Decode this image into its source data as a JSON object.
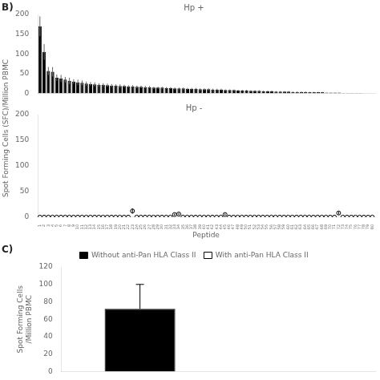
{
  "chart_data": [
    {
      "type": "bar",
      "annotations": [
        "B)"
      ],
      "title": "Hp +",
      "ylabel": "Spot Forming Cells (SFC)/Million PBMC",
      "categories": [
        "1",
        "2",
        "3",
        "4",
        "5",
        "6",
        "7",
        "8",
        "9",
        "10",
        "11",
        "12",
        "13",
        "14",
        "15",
        "16",
        "17",
        "18",
        "19",
        "20",
        "21",
        "22",
        "23",
        "24",
        "25",
        "26",
        "27",
        "28",
        "29",
        "30",
        "31",
        "32",
        "33",
        "34",
        "35",
        "36",
        "37",
        "38",
        "39",
        "40",
        "41",
        "42",
        "43",
        "44",
        "45",
        "46",
        "47",
        "48",
        "49",
        "50",
        "51",
        "52",
        "53",
        "54",
        "55",
        "56",
        "57",
        "58",
        "59",
        "60",
        "61",
        "62",
        "63",
        "64",
        "65",
        "66",
        "67",
        "68",
        "69",
        "70",
        "71",
        "72",
        "73",
        "74",
        "75",
        "76",
        "77",
        "78",
        "79",
        "80"
      ],
      "values": [
        170,
        105,
        57,
        55,
        40,
        38,
        35,
        32,
        30,
        28,
        27,
        25,
        24,
        23,
        22,
        22,
        21,
        20,
        20,
        19,
        19,
        18,
        18,
        17,
        17,
        16,
        16,
        15,
        15,
        15,
        14,
        14,
        13,
        13,
        13,
        12,
        12,
        12,
        11,
        11,
        11,
        10,
        10,
        10,
        9,
        9,
        9,
        8,
        8,
        8,
        7,
        7,
        7,
        6,
        6,
        6,
        5,
        5,
        5,
        5,
        4,
        4,
        4,
        4,
        3,
        3,
        3,
        3,
        2,
        2,
        2,
        2,
        1,
        1,
        1,
        1,
        1,
        0,
        0,
        0
      ],
      "errors": [
        25,
        20,
        10,
        12,
        8,
        9,
        7,
        8,
        6,
        7,
        6,
        5,
        5,
        5,
        4,
        4,
        4,
        4,
        3,
        4,
        3,
        3,
        3,
        3,
        3,
        3,
        3,
        2,
        2,
        2,
        2,
        2,
        2,
        2,
        2,
        2,
        2,
        2,
        2,
        2,
        2,
        2,
        2,
        2,
        1,
        1,
        1,
        1,
        1,
        1,
        1,
        1,
        1,
        1,
        1,
        1,
        1,
        1,
        1,
        1,
        1,
        1,
        1,
        1,
        1,
        1,
        1,
        1,
        0,
        0,
        0,
        0,
        0,
        0,
        0,
        0,
        0,
        0,
        0,
        0
      ],
      "color": "#000000",
      "ylim": [
        0,
        200
      ],
      "yticks": [
        0,
        50,
        100,
        150,
        200
      ],
      "grid": false,
      "tick_labels": "y"
    },
    {
      "type": "line",
      "title": "Hp -",
      "xlabel": "Peptide",
      "categories": [
        "1",
        "2",
        "3",
        "4",
        "5",
        "6",
        "7",
        "8",
        "9",
        "10",
        "11",
        "12",
        "13",
        "14",
        "15",
        "16",
        "17",
        "18",
        "19",
        "20",
        "21",
        "22",
        "23",
        "24",
        "25",
        "26",
        "27",
        "28",
        "29",
        "30",
        "31",
        "32",
        "33",
        "34",
        "35",
        "36",
        "37",
        "38",
        "39",
        "40",
        "41",
        "42",
        "43",
        "44",
        "45",
        "46",
        "47",
        "48",
        "49",
        "50",
        "51",
        "52",
        "53",
        "54",
        "55",
        "56",
        "57",
        "58",
        "59",
        "60",
        "61",
        "62",
        "63",
        "64",
        "65",
        "66",
        "67",
        "68",
        "69",
        "70",
        "71",
        "72",
        "73",
        "74",
        "75",
        "76",
        "77",
        "78",
        "79",
        "80"
      ],
      "values": [
        0,
        0,
        0,
        0,
        0,
        0,
        0,
        0,
        0,
        0,
        0,
        0,
        0,
        0,
        0,
        0,
        0,
        0,
        0,
        0,
        0,
        0,
        12,
        0,
        0,
        0,
        0,
        0,
        0,
        0,
        0,
        0,
        5,
        6,
        0,
        0,
        0,
        0,
        0,
        0,
        0,
        0,
        0,
        0,
        5,
        0,
        0,
        0,
        0,
        0,
        0,
        0,
        0,
        0,
        0,
        0,
        0,
        0,
        0,
        0,
        0,
        0,
        0,
        0,
        0,
        0,
        0,
        0,
        0,
        0,
        0,
        8,
        0,
        0,
        0,
        0,
        0,
        0,
        0,
        0
      ],
      "errors": [
        0,
        0,
        0,
        0,
        0,
        0,
        0,
        0,
        0,
        0,
        0,
        0,
        0,
        0,
        0,
        0,
        0,
        0,
        0,
        0,
        0,
        0,
        5,
        0,
        0,
        0,
        0,
        0,
        0,
        0,
        0,
        0,
        2,
        2,
        0,
        0,
        0,
        0,
        0,
        0,
        0,
        0,
        0,
        0,
        2,
        0,
        0,
        0,
        0,
        0,
        0,
        0,
        0,
        0,
        0,
        0,
        0,
        0,
        0,
        0,
        0,
        0,
        0,
        0,
        0,
        0,
        0,
        0,
        0,
        0,
        0,
        3,
        0,
        0,
        0,
        0,
        0,
        0,
        0,
        0
      ],
      "color": "#000000",
      "marker": "circle",
      "line_style": "none",
      "ylim": [
        0,
        200
      ],
      "yticks": [
        0,
        50,
        100,
        150,
        200
      ],
      "grid": false
    },
    {
      "type": "bar",
      "annotations": [
        "C)"
      ],
      "ylabel": "Spot Forming Cells\n/Million PBMC",
      "categories": [
        null,
        null
      ],
      "series": [
        {
          "name": "Without anti-Pan HLA Class II",
          "color": "#000000",
          "values": [
            72,
            null
          ],
          "error_low": [
            0,
            null
          ],
          "error_high": [
            28,
            null
          ]
        },
        {
          "name": "With anti-Pan HLA Class II",
          "color": "#ffffff",
          "values": [
            null,
            0
          ]
        }
      ],
      "ylim": [
        0,
        120
      ],
      "yticks": [
        0,
        20,
        40,
        60,
        80,
        100,
        120
      ],
      "grid": false,
      "legend": "top",
      "tick_labels": "y"
    }
  ]
}
